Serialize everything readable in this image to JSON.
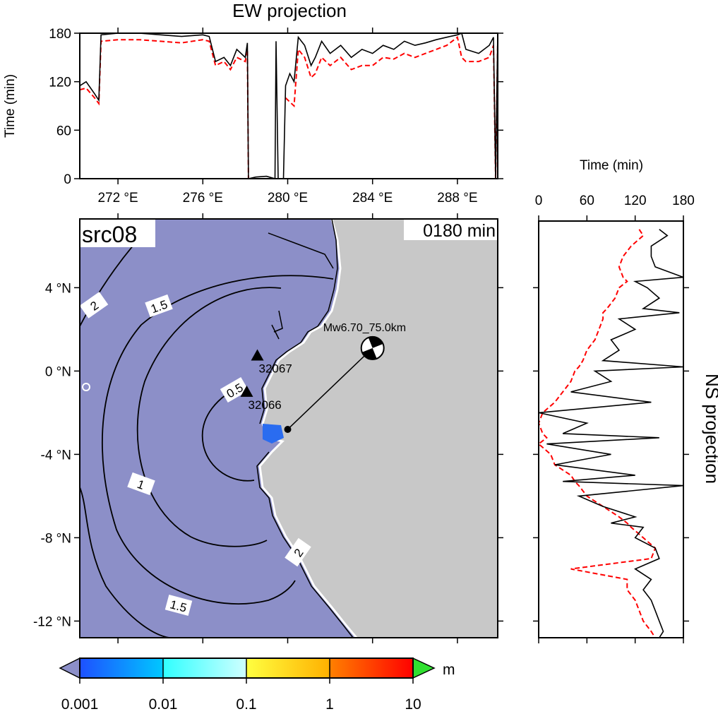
{
  "ew_projection": {
    "type": "line",
    "title": "EW projection",
    "ylabel": "Time (min)",
    "xlim": [
      270.2,
      289.9
    ],
    "ylim": [
      0,
      180
    ],
    "xticks": [
      {
        "value": 272,
        "label": "272 °E"
      },
      {
        "value": 276,
        "label": "276 °E"
      },
      {
        "value": 280,
        "label": "280 °E"
      },
      {
        "value": 284,
        "label": "284 °E"
      },
      {
        "value": 288,
        "label": "288 °E"
      }
    ],
    "yticks": [
      0,
      60,
      120,
      180
    ],
    "x": [
      270.2,
      270.5,
      270.9,
      271.1,
      271.2,
      272,
      273,
      274,
      275,
      276,
      276.3,
      276.6,
      277,
      277.3,
      277.6,
      278,
      278.1,
      278.15,
      278.5,
      279,
      279.4,
      279.45,
      279.55,
      279.8,
      279.9,
      280.1,
      280.3,
      280.5,
      280.8,
      281.1,
      281.3,
      281.6,
      282,
      282.5,
      283,
      283.5,
      284,
      284.5,
      285,
      285.5,
      286,
      286.5,
      287,
      287.5,
      288,
      288.2,
      288.4,
      289,
      289.5,
      289.7,
      289.8,
      289.9
    ],
    "series": [
      {
        "color": "#000000",
        "dashed": false,
        "values": [
          115,
          120,
          105,
          97,
          178,
          180,
          180,
          178,
          176,
          178,
          176,
          145,
          150,
          140,
          160,
          150,
          168,
          0,
          2,
          3,
          0,
          170,
          0,
          0,
          115,
          130,
          120,
          175,
          165,
          140,
          150,
          170,
          155,
          165,
          150,
          160,
          155,
          165,
          160,
          170,
          165,
          168,
          172,
          175,
          178,
          180,
          160,
          155,
          165,
          175,
          0,
          180
        ]
      },
      {
        "color": "#ff0000",
        "dashed": true,
        "values": [
          110,
          112,
          100,
          93,
          170,
          172,
          172,
          170,
          168,
          172,
          170,
          140,
          145,
          135,
          150,
          145,
          160,
          0,
          null,
          null,
          null,
          null,
          null,
          null,
          100,
          95,
          90,
          160,
          150,
          125,
          130,
          150,
          140,
          150,
          135,
          140,
          140,
          150,
          148,
          155,
          150,
          155,
          160,
          165,
          175,
          150,
          145,
          145,
          150,
          165,
          0,
          170
        ]
      }
    ]
  },
  "map": {
    "type": "map",
    "label": "src08",
    "time_label": "0180 min",
    "xlim": [
      270.2,
      289.9
    ],
    "ylim": [
      -12.8,
      7.3
    ],
    "yticks": [
      {
        "value": 4,
        "label": "4 °N"
      },
      {
        "value": 0,
        "label": "0 °N"
      },
      {
        "value": -4,
        "label": "-4 °N"
      },
      {
        "value": -8,
        "label": "-8 °N"
      },
      {
        "value": -12,
        "label": "-12 °N"
      }
    ],
    "ocean_color": "#8c8fc8",
    "land_color": "#c8c8c8",
    "contour_labels": [
      2,
      1.5,
      0.5,
      1,
      1.5,
      2
    ],
    "stations": [
      {
        "name": "32067",
        "lon": 278.57,
        "lat": 0.74
      },
      {
        "name": "32066",
        "lon": 278.07,
        "lat": -1.0
      }
    ],
    "epicenter": {
      "lon": 280.0,
      "lat": -2.8
    },
    "mechanism": {
      "label": "Mw6.70_75.0km",
      "lon": 284.0,
      "lat": 1.1
    }
  },
  "ns_projection": {
    "type": "line",
    "title": "NS projection",
    "xlabel": "Time (min)",
    "xlim": [
      0,
      180
    ],
    "xticks": [
      0,
      60,
      120,
      180
    ],
    "lat": [
      6.8,
      6.5,
      6,
      5.5,
      5,
      4.5,
      4.3,
      4,
      3.5,
      3,
      2.8,
      2.5,
      2,
      1.5,
      1,
      0.5,
      0.2,
      0,
      -0.5,
      -1,
      -1.5,
      -2,
      -2.5,
      -3,
      -3.2,
      -3.5,
      -4,
      -4.5,
      -5,
      -5.3,
      -5.5,
      -6,
      -6.5,
      -7,
      -7.3,
      -7.5,
      -8,
      -8.5,
      -9,
      -9.5,
      -10,
      -10.5,
      -11,
      -11.5,
      -12,
      -12.5,
      -12.8
    ],
    "series": [
      {
        "color": "#000000",
        "dashed": false,
        "values": [
          150,
          160,
          140,
          140,
          145,
          180,
          120,
          135,
          150,
          130,
          175,
          100,
          120,
          90,
          100,
          80,
          180,
          70,
          90,
          40,
          140,
          0,
          60,
          30,
          150,
          10,
          90,
          20,
          120,
          30,
          180,
          50,
          80,
          120,
          90,
          130,
          120,
          145,
          150,
          120,
          140,
          130,
          140,
          145,
          150,
          155,
          150
        ]
      },
      {
        "color": "#ff0000",
        "dashed": true,
        "values": [
          125,
          130,
          115,
          105,
          100,
          105,
          110,
          100,
          95,
          85,
          80,
          80,
          75,
          70,
          60,
          55,
          50,
          45,
          40,
          30,
          20,
          5,
          0,
          5,
          10,
          0,
          15,
          20,
          40,
          45,
          50,
          60,
          80,
          100,
          110,
          115,
          130,
          145,
          140,
          40,
          110,
          110,
          120,
          125,
          130,
          140,
          145
        ]
      }
    ]
  },
  "colorbar": {
    "type": "colorbar",
    "log": true,
    "ticks": [
      0.001,
      0.01,
      0.1,
      1,
      10
    ],
    "unit": "m",
    "segments": [
      [
        "#1e50ff",
        "#00c8ff"
      ],
      [
        "#30ffff",
        "#d0ffff"
      ],
      [
        "#ffff40",
        "#ffb000"
      ],
      [
        "#ff8000",
        "#ff0000"
      ]
    ],
    "under_color": "#8c8fc8",
    "over_color": "#30e030"
  }
}
